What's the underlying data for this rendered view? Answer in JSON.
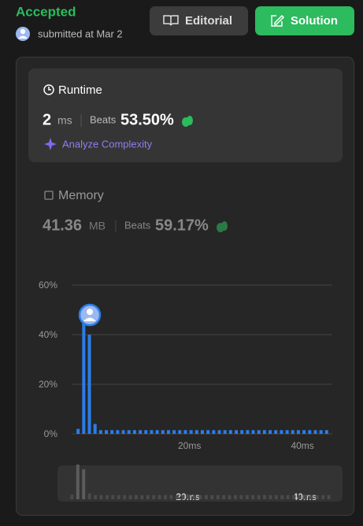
{
  "header": {
    "status": "Accepted",
    "submitted": "submitted at Mar 2"
  },
  "buttons": {
    "editorial": "Editorial",
    "solution": "Solution"
  },
  "runtime": {
    "title": "Runtime",
    "value": "2",
    "unit": "ms",
    "beats_label": "Beats",
    "beats": "53.50%",
    "analyze": "Analyze Complexity"
  },
  "memory": {
    "title": "Memory",
    "value": "41.36",
    "unit": "MB",
    "beats_label": "Beats",
    "beats": "59.17%"
  },
  "chart_data": {
    "type": "bar",
    "color": "#2b7de9",
    "grid": true,
    "x": [
      0,
      1,
      2,
      3,
      4,
      5,
      6,
      7,
      8,
      9,
      10,
      11,
      12,
      13,
      14,
      15,
      16,
      17,
      18,
      19,
      20,
      21,
      22,
      23,
      24,
      25,
      26,
      27,
      28,
      29,
      30,
      31,
      32,
      33,
      34,
      35,
      36,
      37,
      38,
      39,
      40,
      41,
      42,
      43,
      44
    ],
    "values": [
      2,
      47,
      40,
      4,
      1.5,
      1.5,
      1.5,
      1.5,
      1.5,
      1.5,
      1.5,
      1.5,
      1.5,
      1.5,
      1.5,
      1.5,
      1.5,
      1.5,
      1.5,
      1.5,
      1.5,
      1.5,
      1.5,
      1.5,
      1.5,
      1.5,
      1.5,
      1.5,
      1.5,
      1.5,
      1.5,
      1.5,
      1.5,
      1.5,
      1.5,
      1.5,
      1.5,
      1.5,
      1.5,
      1.5,
      1.5,
      1.5,
      1.5,
      1.5,
      1.5
    ],
    "xlim": [
      -1,
      45
    ],
    "xticks": [
      {
        "value": 20,
        "label": "20ms"
      },
      {
        "value": 40,
        "label": "40ms"
      }
    ],
    "ylim": [
      0,
      60
    ],
    "yticks": [
      {
        "value": 0,
        "label": "0%"
      },
      {
        "value": 20,
        "label": "20%"
      },
      {
        "value": 40,
        "label": "40%"
      },
      {
        "value": 60,
        "label": "60%"
      }
    ]
  }
}
